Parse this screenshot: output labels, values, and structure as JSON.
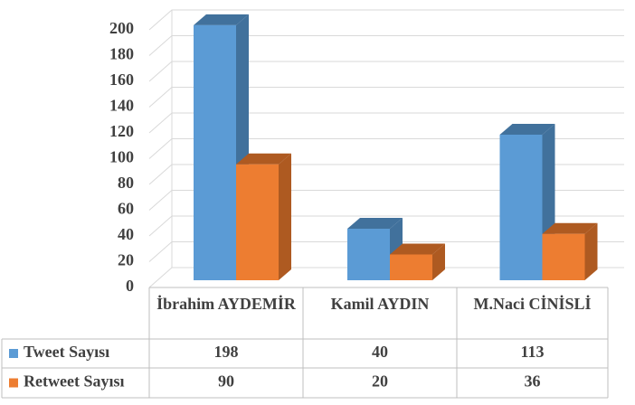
{
  "chart_data": {
    "type": "bar3d",
    "categories": [
      "İbrahim AYDEMİR",
      "Kamil AYDIN",
      "M.Naci CİNİSLİ"
    ],
    "series": [
      {
        "name": "Tweet Sayısı",
        "color": "#5b9bd5",
        "side": "#41719c",
        "values": [
          198,
          40,
          113
        ]
      },
      {
        "name": "Retweet Sayısı",
        "color": "#ed7d31",
        "side": "#ae5a21",
        "values": [
          90,
          20,
          36
        ]
      }
    ],
    "ylim": [
      0,
      200
    ],
    "yticks": [
      0,
      20,
      40,
      60,
      80,
      100,
      120,
      140,
      160,
      180,
      200
    ],
    "grid": true,
    "data_table": true
  }
}
